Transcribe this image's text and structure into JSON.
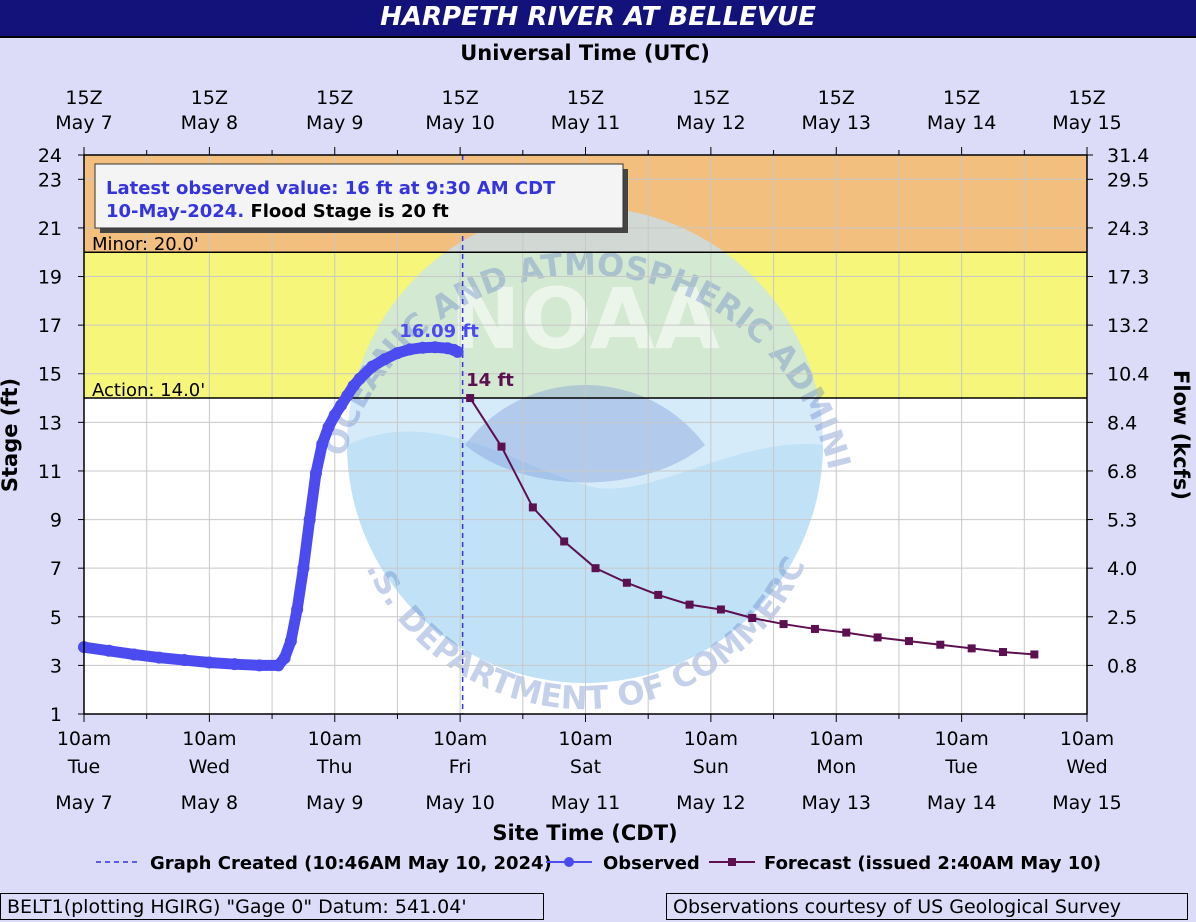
{
  "title": "HARPETH RIVER AT BELLEVUE",
  "top_axis_label": "Universal Time (UTC)",
  "bottom_axis_label": "Site Time (CDT)",
  "left_axis_label": "Stage (ft)",
  "right_axis_label": "Flow (kcfs)",
  "info_box": {
    "line1": "Latest observed value: 16 ft at 9:30 AM CDT",
    "line2_date": "10-May-2024.",
    "line2_flood": " Flood Stage is 20 ft"
  },
  "thresholds": [
    {
      "name": "Minor",
      "label": "Minor: 20.0'",
      "stage": 20
    },
    {
      "name": "Action",
      "label": "Action: 14.0'",
      "stage": 14
    }
  ],
  "annotations": {
    "observed_peak": "16.09 ft",
    "forecast_start": "14 ft"
  },
  "watermark": {
    "center_text": "NOAA",
    "upper_text": "NATIONAL OCEANIC AND ATMOSPHERIC ADMINISTRATION",
    "lower_text": "U.S. DEPARTMENT OF COMMERCE"
  },
  "legend": {
    "created": "Graph Created (10:46AM May 10, 2024)",
    "observed": "Observed",
    "forecast": "Forecast (issued 2:40AM May 10)"
  },
  "footer": {
    "left": "BELT1(plotting HGIRG) \"Gage 0\" Datum: 541.04'",
    "right": "Observations courtesy of US Geological Survey"
  },
  "colors": {
    "observed": "#4b4bef",
    "forecast": "#5c1050",
    "minor_zone": "#f2bf7f",
    "action_zone": "#f6f67a",
    "created_line": "#3535e0",
    "plot_bg": "#ffffff"
  },
  "chart_data": {
    "type": "line",
    "x_unit": "days",
    "xlim": [
      0,
      8
    ],
    "ylim_stage": [
      1,
      24
    ],
    "y_ticks": [
      1,
      3,
      5,
      7,
      9,
      11,
      13,
      15,
      17,
      19,
      21,
      23,
      24
    ],
    "flow_ticks": [
      {
        "stage": 24,
        "label": "31.4"
      },
      {
        "stage": 23,
        "label": "29.5"
      },
      {
        "stage": 21,
        "label": "24.3"
      },
      {
        "stage": 19,
        "label": "17.3"
      },
      {
        "stage": 17,
        "label": "13.2"
      },
      {
        "stage": 15,
        "label": "10.4"
      },
      {
        "stage": 13,
        "label": "8.4"
      },
      {
        "stage": 11,
        "label": "6.8"
      },
      {
        "stage": 9,
        "label": "5.3"
      },
      {
        "stage": 7,
        "label": "4.0"
      },
      {
        "stage": 5,
        "label": "2.5"
      },
      {
        "stage": 3,
        "label": "0.8"
      }
    ],
    "bottom_ticks": [
      {
        "time": "10am",
        "day": "Tue",
        "date": "May 7"
      },
      {
        "time": "10am",
        "day": "Wed",
        "date": "May 8"
      },
      {
        "time": "10am",
        "day": "Thu",
        "date": "May 9"
      },
      {
        "time": "10am",
        "day": "Fri",
        "date": "May 10"
      },
      {
        "time": "10am",
        "day": "Sat",
        "date": "May 11"
      },
      {
        "time": "10am",
        "day": "Sun",
        "date": "May 12"
      },
      {
        "time": "10am",
        "day": "Mon",
        "date": "May 13"
      },
      {
        "time": "10am",
        "day": "Tue",
        "date": "May 14"
      },
      {
        "time": "10am",
        "day": "Wed",
        "date": "May 15"
      }
    ],
    "top_ticks": [
      {
        "time": "15Z",
        "date": "May  7"
      },
      {
        "time": "15Z",
        "date": "May  8"
      },
      {
        "time": "15Z",
        "date": "May  9"
      },
      {
        "time": "15Z",
        "date": "May 10"
      },
      {
        "time": "15Z",
        "date": "May 11"
      },
      {
        "time": "15Z",
        "date": "May 12"
      },
      {
        "time": "15Z",
        "date": "May 13"
      },
      {
        "time": "15Z",
        "date": "May 14"
      },
      {
        "time": "15Z",
        "date": "May 15"
      }
    ],
    "graph_created_x": 3.02,
    "observed": {
      "name": "Observed",
      "x": [
        0,
        0.2,
        0.4,
        0.6,
        0.8,
        1.0,
        1.2,
        1.4,
        1.55,
        1.6,
        1.65,
        1.7,
        1.75,
        1.8,
        1.85,
        1.9,
        1.95,
        2.0,
        2.05,
        2.1,
        2.15,
        2.2,
        2.3,
        2.4,
        2.5,
        2.6,
        2.7,
        2.8,
        2.9,
        2.95,
        2.98
      ],
      "y": [
        3.75,
        3.6,
        3.45,
        3.32,
        3.22,
        3.12,
        3.05,
        3.0,
        3.0,
        3.3,
        4.0,
        5.3,
        7.0,
        9.0,
        10.9,
        12.1,
        12.8,
        13.3,
        13.7,
        14.1,
        14.5,
        14.8,
        15.3,
        15.6,
        15.85,
        16.0,
        16.07,
        16.09,
        16.05,
        15.98,
        15.9
      ]
    },
    "forecast": {
      "name": "Forecast (issued 2:40AM May 10)",
      "x": [
        3.08,
        3.33,
        3.58,
        3.83,
        4.08,
        4.33,
        4.58,
        4.83,
        5.08,
        5.33,
        5.58,
        5.83,
        6.08,
        6.33,
        6.58,
        6.83,
        7.08,
        7.33,
        7.58
      ],
      "y": [
        14.0,
        12.0,
        9.5,
        8.1,
        7.0,
        6.4,
        5.9,
        5.5,
        5.3,
        4.95,
        4.7,
        4.5,
        4.35,
        4.15,
        4.0,
        3.85,
        3.7,
        3.55,
        3.45
      ]
    }
  }
}
